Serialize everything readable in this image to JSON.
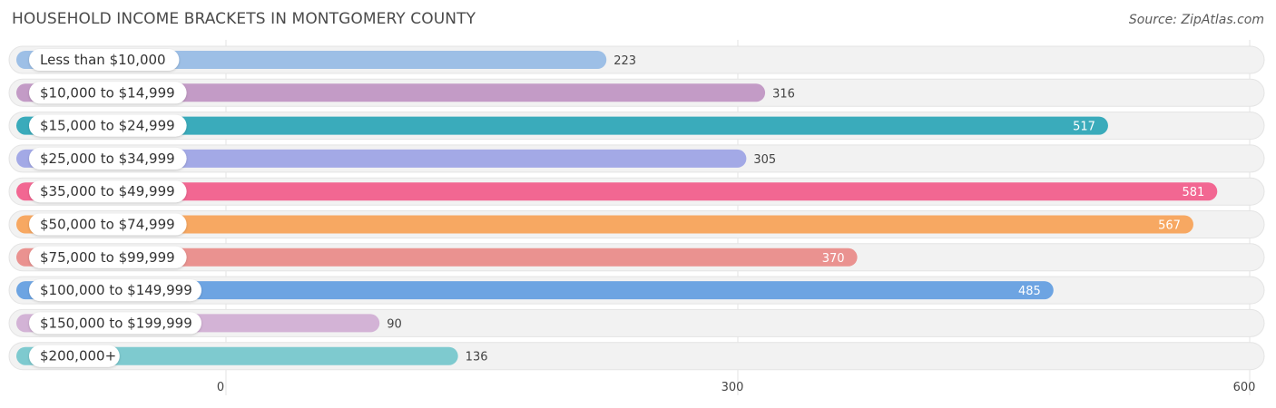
{
  "header": {
    "title": "HOUSEHOLD INCOME BRACKETS IN MONTGOMERY COUNTY",
    "source": "Source: ZipAtlas.com"
  },
  "chart_data": {
    "type": "bar",
    "orientation": "horizontal",
    "title": "HOUSEHOLD INCOME BRACKETS IN MONTGOMERY COUNTY",
    "xlabel": "",
    "ylabel": "",
    "xlim": [
      0,
      600
    ],
    "x_ticks": [
      0,
      300,
      600
    ],
    "grid": true,
    "categories": [
      "Less than $10,000",
      "$10,000 to $14,999",
      "$15,000 to $24,999",
      "$25,000 to $34,999",
      "$35,000 to $49,999",
      "$50,000 to $74,999",
      "$75,000 to $99,999",
      "$100,000 to $149,999",
      "$150,000 to $199,999",
      "$200,000+"
    ],
    "values": [
      223,
      316,
      517,
      305,
      581,
      567,
      370,
      485,
      90,
      136
    ],
    "colors": [
      "#9dbfe6",
      "#c39bc6",
      "#3aabbb",
      "#a3a9e6",
      "#f26792",
      "#f7a862",
      "#ea9290",
      "#6da4e2",
      "#d3b3d6",
      "#7ecacf"
    ],
    "value_label_inside": [
      false,
      false,
      true,
      false,
      true,
      true,
      true,
      true,
      false,
      false
    ]
  }
}
